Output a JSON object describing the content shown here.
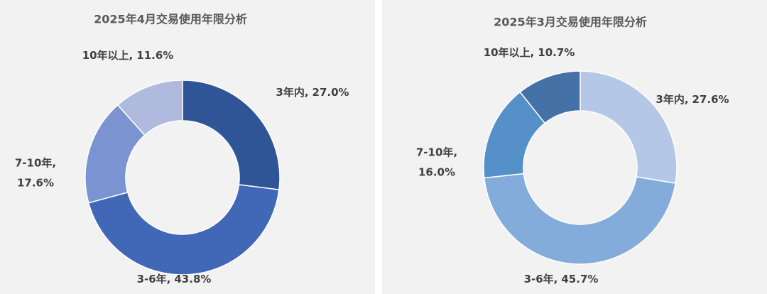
{
  "chart_data": [
    {
      "type": "donut",
      "title": "2025年4月交易使用年限分析",
      "categories": [
        "3年内,",
        "3-6年,",
        "7-10年,",
        "10年以上,"
      ],
      "values": [
        27.0,
        43.8,
        17.6,
        11.6
      ],
      "value_labels": [
        "27.0%",
        "43.8%",
        "17.6%",
        "11.6%"
      ],
      "colors": [
        "#2f5597",
        "#4068b6",
        "#7b93d1",
        "#b0bade"
      ]
    },
    {
      "type": "donut",
      "title": "2025年3月交易使用年限分析",
      "categories": [
        "3年内,",
        "3-6年,",
        "7-10年,",
        "10年以上,"
      ],
      "values": [
        27.6,
        45.7,
        16.0,
        10.7
      ],
      "value_labels": [
        "27.6%",
        "45.7%",
        "16.0%",
        "10.7%"
      ],
      "colors": [
        "#b4c7e7",
        "#84acdb",
        "#5591c8",
        "#4472a6"
      ]
    }
  ]
}
